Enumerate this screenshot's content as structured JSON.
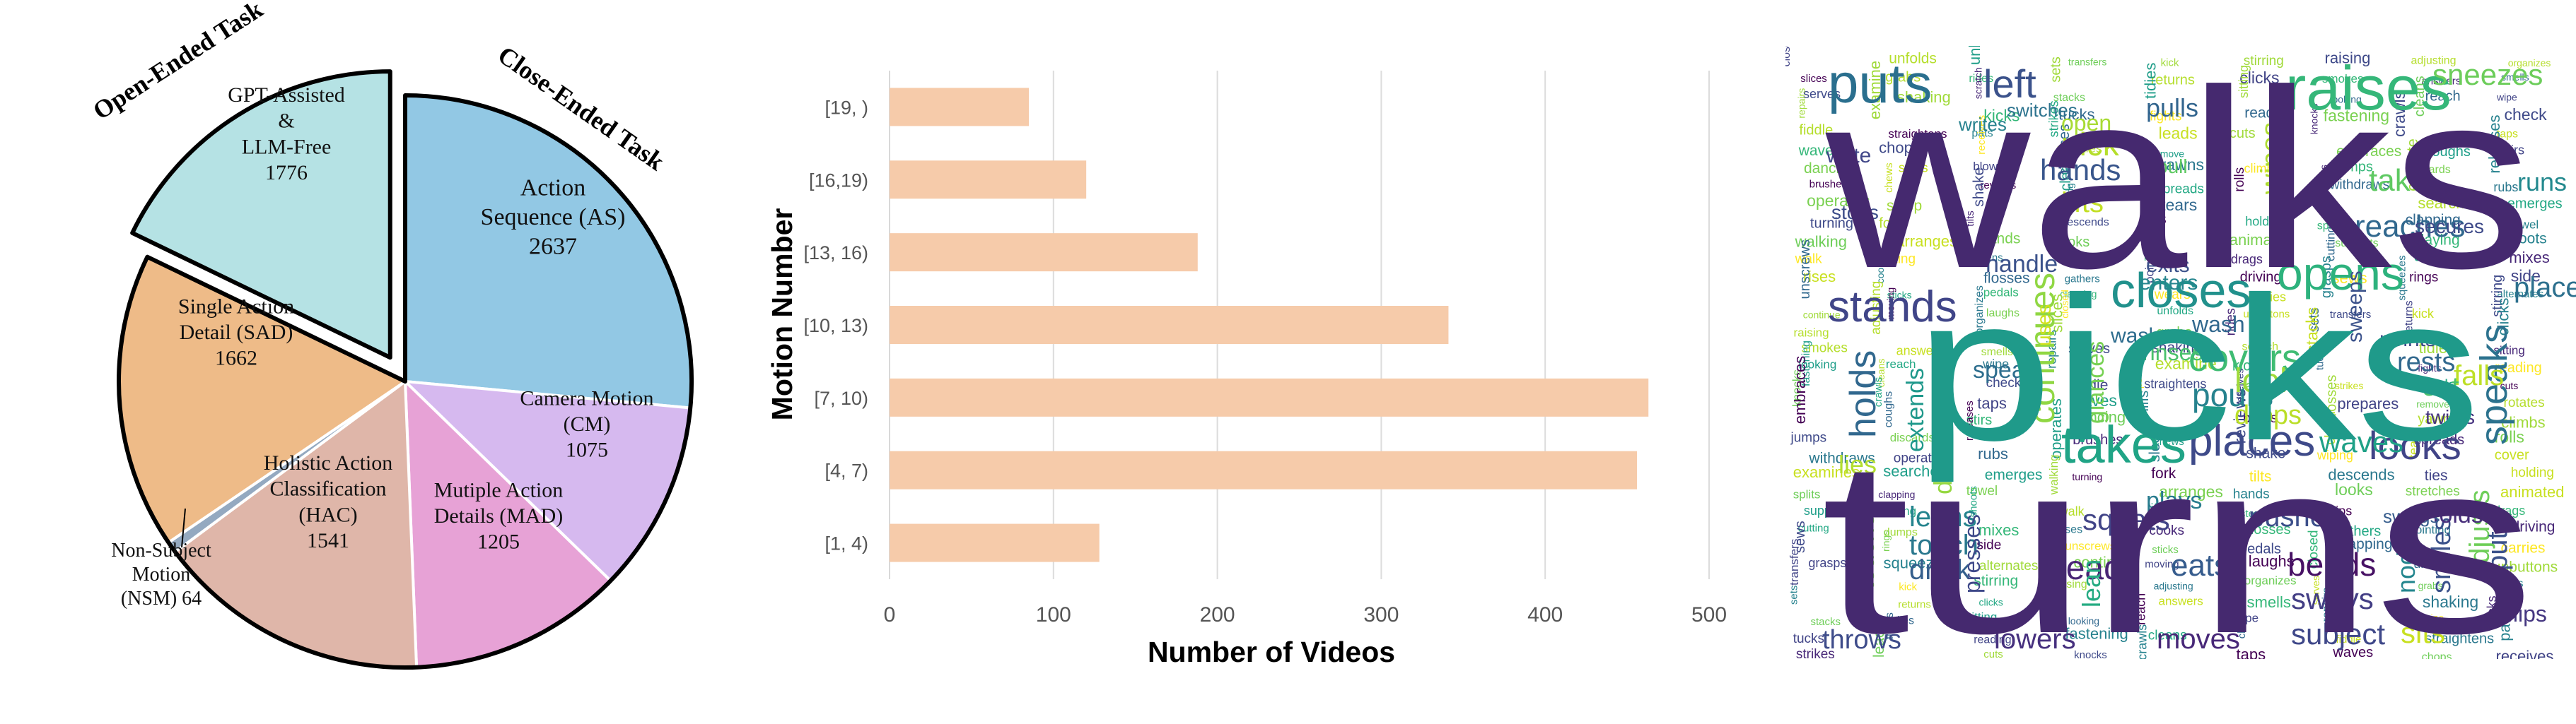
{
  "pie": {
    "group_labels": {
      "open": "Open-Ended Task",
      "close": "Close-Ended Task"
    },
    "slices": [
      {
        "id": "as",
        "lines": [
          "Action",
          "Sequence (AS)",
          "2637"
        ],
        "value": 2637,
        "color": "#92c8e4"
      },
      {
        "id": "cm",
        "lines": [
          "Camera Motion",
          "(CM)",
          "1075"
        ],
        "value": 1075,
        "color": "#d6b9ef"
      },
      {
        "id": "mad",
        "lines": [
          "Mutiple Action",
          "Details (MAD)",
          "1205"
        ],
        "value": 1205,
        "color": "#e7a2d6"
      },
      {
        "id": "hac",
        "lines": [
          "Holistic Action",
          "Classification",
          "(HAC)",
          "1541"
        ],
        "value": 1541,
        "color": "#dfb6a9"
      },
      {
        "id": "nsm",
        "lines": [
          "Non-Subject",
          "Motion",
          "(NSM) 64"
        ],
        "value": 64,
        "color": "#94a9c0"
      },
      {
        "id": "sad",
        "lines": [
          "Single Action",
          "Detail (SAD)",
          "1662"
        ],
        "value": 1662,
        "color": "#eebb88"
      },
      {
        "id": "open",
        "lines": [
          "GPT-Assisted",
          "&",
          "LLM-Free",
          "1776"
        ],
        "value": 1776,
        "color": "#b5e2e4"
      }
    ]
  },
  "chart_data": [
    {
      "type": "pie",
      "categories": [
        "Action Sequence (AS)",
        "Camera Motion (CM)",
        "Mutiple Action Details (MAD)",
        "Holistic Action Classification (HAC)",
        "Non-Subject Motion (NSM)",
        "Single Action Detail (SAD)",
        "GPT-Assisted & LLM-Free"
      ],
      "values": [
        2637,
        1075,
        1205,
        1541,
        64,
        1662,
        1776
      ],
      "groups": {
        "Close-Ended Task": [
          2637,
          1075,
          1205,
          1541,
          64,
          1662
        ],
        "Open-Ended Task": [
          1776
        ]
      }
    },
    {
      "type": "bar",
      "orientation": "horizontal",
      "categories": [
        "[19, )",
        "[16,19)",
        "[13, 16)",
        "[10, 13)",
        "[7, 10)",
        "[4, 7)",
        "[1, 4)"
      ],
      "values": [
        85,
        120,
        188,
        341,
        463,
        456,
        128
      ],
      "xlabel": "Number of Videos",
      "ylabel": "Motion Number",
      "xlim": [
        0,
        500
      ],
      "xticks": [
        "0",
        "100",
        "200",
        "300",
        "400",
        "500"
      ],
      "grid": true,
      "color": "#f6cbaa"
    }
  ],
  "wordcloud": {
    "large": [
      {
        "text": "walks",
        "color": "#45296f"
      },
      {
        "text": "picks",
        "color": "#1f9a8a"
      },
      {
        "text": "turns",
        "color": "#45296f"
      }
    ],
    "medium": [
      {
        "text": "puts",
        "color": "#2a6f8e"
      },
      {
        "text": "left",
        "color": "#3b528b"
      },
      {
        "text": "raises",
        "color": "#35b779"
      },
      {
        "text": "sneezes",
        "color": "#6ccd5a"
      },
      {
        "text": "takes",
        "color": "#20a486"
      },
      {
        "text": "stands",
        "color": "#404588"
      },
      {
        "text": "closes",
        "color": "#21918c"
      },
      {
        "text": "opens",
        "color": "#2db27d"
      },
      {
        "text": "places",
        "color": "#3e4a89"
      },
      {
        "text": "looks",
        "color": "#414487"
      },
      {
        "text": "holds",
        "color": "#31688e"
      },
      {
        "text": "continues",
        "color": "#90d743"
      },
      {
        "text": "speaks",
        "color": "#2c728e"
      },
      {
        "text": "hands",
        "color": "#39568c"
      },
      {
        "text": "pick",
        "color": "#b5de2b"
      },
      {
        "text": "lifts",
        "color": "#c2df23"
      },
      {
        "text": "reaches",
        "color": "#31688e"
      },
      {
        "text": "take",
        "color": "#5ec962"
      },
      {
        "text": "covers",
        "color": "#3fbc73"
      },
      {
        "text": "pours",
        "color": "#26828e"
      },
      {
        "text": "leans",
        "color": "#25848e"
      },
      {
        "text": "touch",
        "color": "#2a788e"
      },
      {
        "text": "drink",
        "color": "#355f8d"
      },
      {
        "text": "head",
        "color": "#482475"
      },
      {
        "text": "eats",
        "color": "#365c8d"
      },
      {
        "text": "bends",
        "color": "#471164"
      },
      {
        "text": "sways",
        "color": "#433e85"
      },
      {
        "text": "subject",
        "color": "#3f4889"
      },
      {
        "text": "sits",
        "color": "#c8e020"
      },
      {
        "text": "lowers",
        "color": "#46307e"
      },
      {
        "text": "moves",
        "color": "#482878"
      },
      {
        "text": "throws",
        "color": "#3e4c8a"
      },
      {
        "text": "wipes",
        "color": "#addc30"
      },
      {
        "text": "places",
        "color": "#2d708e"
      },
      {
        "text": "runs",
        "color": "#23898e"
      },
      {
        "text": "adjusts",
        "color": "#6ece58"
      },
      {
        "text": "smiles",
        "color": "#3b528b"
      },
      {
        "text": "nods",
        "color": "#24868e"
      },
      {
        "text": "falls",
        "color": "#bddf26"
      },
      {
        "text": "rests",
        "color": "#31688e"
      },
      {
        "text": "points",
        "color": "#3e4989"
      },
      {
        "text": "eat",
        "color": "#4ac16d"
      },
      {
        "text": "folds",
        "color": "#472d7b"
      },
      {
        "text": "waves",
        "color": "#1fa187"
      },
      {
        "text": "squats",
        "color": "#414487"
      },
      {
        "text": "pushes",
        "color": "#3c4f8a"
      },
      {
        "text": "plays",
        "color": "#287c8e"
      },
      {
        "text": "look",
        "color": "#9fda3a"
      },
      {
        "text": "drops",
        "color": "#bade28"
      },
      {
        "text": "wash",
        "color": "#31688e"
      },
      {
        "text": "exits",
        "color": "#3b528b"
      },
      {
        "text": "enters",
        "color": "#25858e"
      },
      {
        "text": "speak",
        "color": "#2e6e8e"
      },
      {
        "text": "handle",
        "color": "#3b528b"
      },
      {
        "text": "extends",
        "color": "#1f988b"
      },
      {
        "text": "uses",
        "color": "#d0e11c"
      },
      {
        "text": "open",
        "color": "#a8db34"
      },
      {
        "text": "pull",
        "color": "#5ec962"
      },
      {
        "text": "pulls",
        "color": "#32658e"
      },
      {
        "text": "write",
        "color": "#404688"
      },
      {
        "text": "writes",
        "color": "#26818e"
      },
      {
        "text": "switches",
        "color": "#2c738e"
      },
      {
        "text": "lies",
        "color": "#b2dd2d"
      },
      {
        "text": "stops",
        "color": "#3d4d8a"
      },
      {
        "text": "touches",
        "color": "#7ad151"
      },
      {
        "text": "sweeps",
        "color": "#3b528b"
      },
      {
        "text": "secures",
        "color": "#3e4a89"
      },
      {
        "text": "twists",
        "color": "#46337f"
      },
      {
        "text": "swings",
        "color": "#365d8d"
      },
      {
        "text": "flips",
        "color": "#453781"
      },
      {
        "text": "put",
        "color": "#3b528b"
      },
      {
        "text": "drinks",
        "color": "#95d840"
      },
      {
        "text": "rinses",
        "color": "#4ac16d"
      },
      {
        "text": "lean",
        "color": "#25ab82"
      },
      {
        "text": "presses",
        "color": "#3e4989"
      },
      {
        "text": "glances",
        "color": "#77d153"
      },
      {
        "text": "washes",
        "color": "#2e6d8e"
      },
      {
        "text": "inspect",
        "color": "#404688"
      }
    ],
    "small": [
      "closed",
      "unfolds",
      "unbuttons",
      "transfers",
      "kick",
      "stirring",
      "raising",
      "adjusting",
      "organizes",
      "slices",
      "grabs",
      "rides",
      "sets",
      "returns",
      "clicks",
      "smokes",
      "answers",
      "smells",
      "serves",
      "shaking",
      "scratch",
      "stacks",
      "tidies",
      "sitting",
      "looking",
      "reach",
      "wipe",
      "repairs",
      "examine",
      "kicks",
      "tucks",
      "fights",
      "reading",
      "fastening",
      "cleans",
      "check",
      "fiddle",
      "straightens",
      "pats",
      "strikes",
      "leads",
      "cuts",
      "knocks",
      "crawls",
      "taps",
      "waves",
      "chops",
      "receives",
      "prepares",
      "remove",
      "rotates",
      "embraces",
      "coughs",
      "stirs",
      "dancing",
      "sniffs",
      "blows",
      "crosses",
      "yawns",
      "climbs",
      "jumps",
      "discards",
      "releases",
      "brushes",
      "chews",
      "reviews",
      "clean",
      "spreads",
      "rolls",
      "withdraws",
      "operate",
      "rubs",
      "operates",
      "sleep",
      "shake",
      "wiping",
      "tears",
      "cover",
      "examines",
      "searches",
      "emerges",
      "turning",
      "fork",
      "tilts",
      "descends",
      "ties",
      "holding",
      "splits",
      "clapping",
      "towel",
      "walking",
      "arranges",
      "hands",
      "looks",
      "stretches",
      "animated",
      "supports",
      "playing",
      "shoots",
      "walk",
      "lifting",
      "fastens",
      "zips",
      "fixes",
      "drags",
      "cutting",
      "dumps",
      "mixes",
      "rises",
      "cooks",
      "flosses",
      "gathers",
      "pointing",
      "driving",
      "sews",
      "rings",
      "side",
      "unscrews",
      "sticks",
      "pedals",
      "clapping",
      "wears",
      "carries",
      "grasps",
      "squeezes",
      "alternates",
      "continue",
      "moving",
      "laughs"
    ]
  }
}
